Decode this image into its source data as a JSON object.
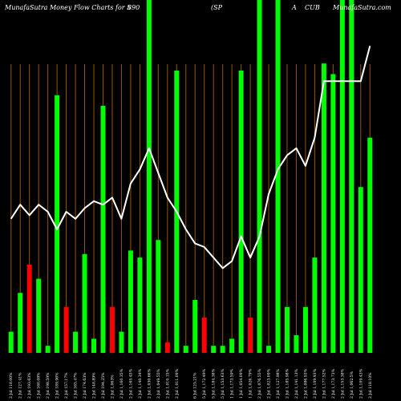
{
  "chart_data": {
    "type": "bar",
    "title_left": "MunafaSutra  Money Flow  Charts for 5",
    "title_code": "890",
    "title_mid": "(SP",
    "title_right_a": "A",
    "title_right_b": "CUB",
    "title_watermark": "MunafaSutra.com",
    "categories": [
      "2 Jul 118.00%",
      "2 Jul 127.41%",
      "2 Jul 193.63%",
      "2 Jul 160.08%",
      "2 Jul 198.59%",
      "2 Jul 189.96%",
      "2 Jul 157.17%",
      "2 Jul 165.47%",
      "2 Jul 174.63%",
      "2 Jul 148.89%",
      "2 Jul 194.25%",
      "2 Jul 1,063%",
      "2 Jul 1,160.35%",
      "2 Jul 1,165.45%",
      "2 Jul 1,140.34%",
      "2 Jul 1,030.66%",
      "2 Jul 1,049.55%",
      "2 Jul 1,010.15%",
      "2 Jul 1,011.09%",
      "",
      "6 Jul 125.21%",
      "5 Jul 1,172.49%",
      "5 Jul 1,184.38%",
      "5 Jul 1,153.63%",
      "1 Jul 1,173.59%",
      "1 Jul 1,054.09%",
      "1 Jul 1,026.79%",
      "2 Jul 1,076.55%",
      "2 Jul 1,023.09%",
      "2 Jul 1,127.98%",
      "2 Jul 1,185.98%",
      "2 Jul 1,141.13%",
      "2 Jul 1,086.93%",
      "2 Jul 1,109.93%",
      "2 Jul 1,177.52%",
      "2 Jul 1,173.73%",
      "2 Jul 1,153.38%",
      "2 Jul 1,062.5%",
      "2 Jul 1,109.43%",
      "2 Jul 118.10%"
    ],
    "values": [
      6,
      17,
      25,
      21,
      2,
      73,
      13,
      6,
      28,
      4,
      70,
      13,
      6,
      29,
      27,
      100,
      32,
      3,
      80,
      2,
      15,
      10,
      2,
      2,
      4,
      80,
      10,
      100,
      2,
      100,
      13,
      5,
      13,
      27,
      82,
      79,
      100,
      100,
      47,
      61
    ],
    "colors": [
      "green",
      "green",
      "red",
      "green",
      "green",
      "green",
      "red",
      "green",
      "green",
      "green",
      "green",
      "red",
      "green",
      "green",
      "green",
      "green",
      "green",
      "red",
      "green",
      "green",
      "green",
      "red",
      "green",
      "green",
      "green",
      "green",
      "red",
      "green",
      "green",
      "green",
      "green",
      "green",
      "green",
      "green",
      "green",
      "green",
      "green",
      "green",
      "green",
      "green"
    ],
    "line_values": [
      38,
      42,
      39,
      42,
      40,
      35,
      40,
      38,
      41,
      43,
      42,
      44,
      38,
      48,
      52,
      58,
      51,
      44,
      40,
      35,
      31,
      30,
      27,
      24,
      26,
      33,
      27,
      33,
      45,
      52,
      56,
      58,
      53,
      61,
      77,
      77,
      77,
      77,
      77,
      87
    ],
    "ylim": [
      0,
      100
    ],
    "grid": true,
    "legend": "none"
  },
  "colors": {
    "background": "#000000",
    "green_bar": "#00ff00",
    "red_bar": "#ff0000",
    "grid_line": "#995500",
    "line": "#ffffff",
    "text": "#ffffff"
  }
}
